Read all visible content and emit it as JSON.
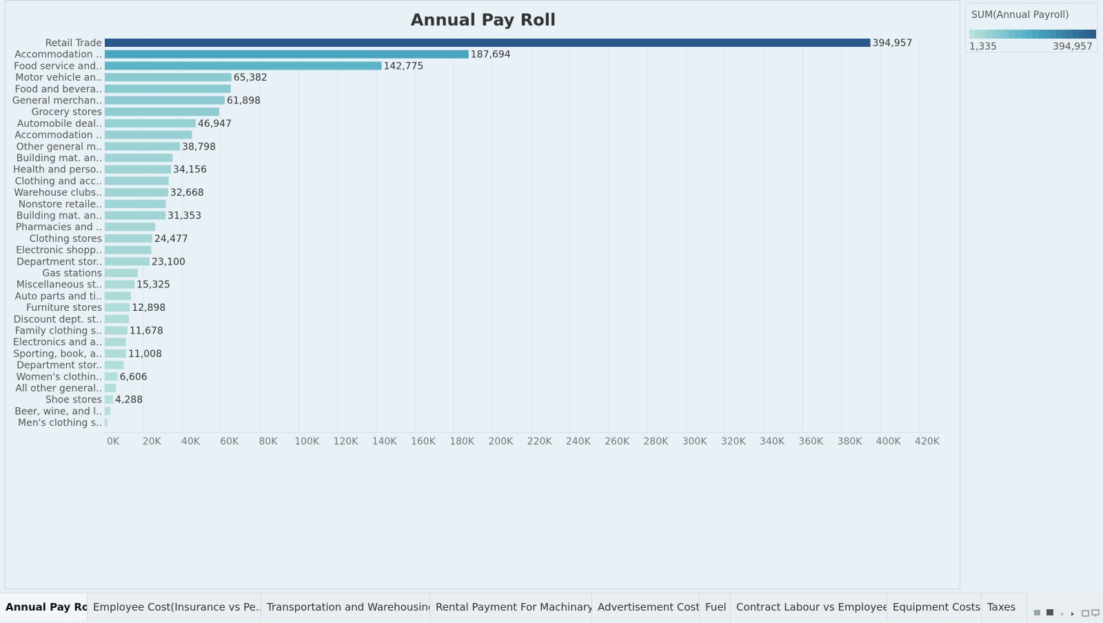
{
  "tabs": [
    {
      "label": "Annual Pay Roll",
      "active": true
    },
    {
      "label": "Employee Cost(Insurance vs Pe..."
    },
    {
      "label": "Transportation and Warehousing"
    },
    {
      "label": "Rental Payment For Machinary"
    },
    {
      "label": "Advertisement Cost"
    },
    {
      "label": "Fuel"
    },
    {
      "label": "Contract Labour vs Employee"
    },
    {
      "label": "Equipment Costs"
    },
    {
      "label": "Taxes"
    }
  ],
  "legend": {
    "title": "SUM(Annual Payroll)",
    "min_label": "1,335",
    "max_label": "394,957",
    "min": 1335,
    "max": 394957,
    "color_low": "#b9e1da",
    "color_high": "#2a5a8c"
  },
  "tab_controls": [
    "grid-view-icon",
    "single-view-icon",
    "prev-icon",
    "next-icon",
    "fullscreen-icon",
    "present-icon"
  ],
  "chart_data": {
    "type": "bar",
    "orientation": "horizontal",
    "title": "Annual Pay Roll",
    "xlabel": "",
    "ylabel": "",
    "xlim": [
      0,
      420000
    ],
    "x_ticks": [
      "0K",
      "20K",
      "40K",
      "60K",
      "80K",
      "100K",
      "120K",
      "140K",
      "160K",
      "180K",
      "200K",
      "220K",
      "240K",
      "260K",
      "280K",
      "300K",
      "320K",
      "340K",
      "360K",
      "380K",
      "400K",
      "420K"
    ],
    "categories": [
      "Retail Trade",
      "Accommodation ..",
      "Food service and..",
      "Motor vehicle an..",
      "Food and bevera..",
      "General merchan..",
      "Grocery stores",
      "Automobile deal..",
      "Accommodation ..",
      "Other general m..",
      "Building mat. an..",
      "Health and perso..",
      "Clothing and acc..",
      "Warehouse clubs..",
      "Nonstore retaile..",
      "Building mat. an..",
      "Pharmacies and ..",
      "Clothing stores",
      "Electronic shopp..",
      "Department stor..",
      "Gas stations",
      "Miscellaneous st..",
      "Auto parts and ti..",
      "Furniture stores",
      "Discount dept. st..",
      "Family clothing s..",
      "Electronics and a..",
      "Sporting, book, a..",
      "Department stor..",
      "Women's clothin..",
      "All other general..",
      "Shoe stores",
      "Beer, wine, and l..",
      "Men's clothing s.."
    ],
    "values": [
      394957,
      187694,
      142775,
      65382,
      65000,
      61898,
      59000,
      46947,
      45000,
      38798,
      35000,
      34156,
      33000,
      32668,
      31500,
      31353,
      26000,
      24477,
      24000,
      23100,
      17000,
      15325,
      13500,
      12898,
      12500,
      11678,
      10800,
      11008,
      9700,
      6606,
      5800,
      4288,
      2900,
      1335
    ],
    "data_labels": [
      "394,957",
      "187,694",
      "142,775",
      "65,382",
      "",
      "61,898",
      "",
      "46,947",
      "",
      "38,798",
      "",
      "34,156",
      "",
      "32,668",
      "",
      "31,353",
      "",
      "24,477",
      "",
      "23,100",
      "",
      "15,325",
      "",
      "12,898",
      "",
      "11,678",
      "",
      "11,008",
      "",
      "6,606",
      "",
      "4,288",
      "",
      ""
    ],
    "grid": true,
    "color_scale": "sequential teal-blue by value"
  }
}
